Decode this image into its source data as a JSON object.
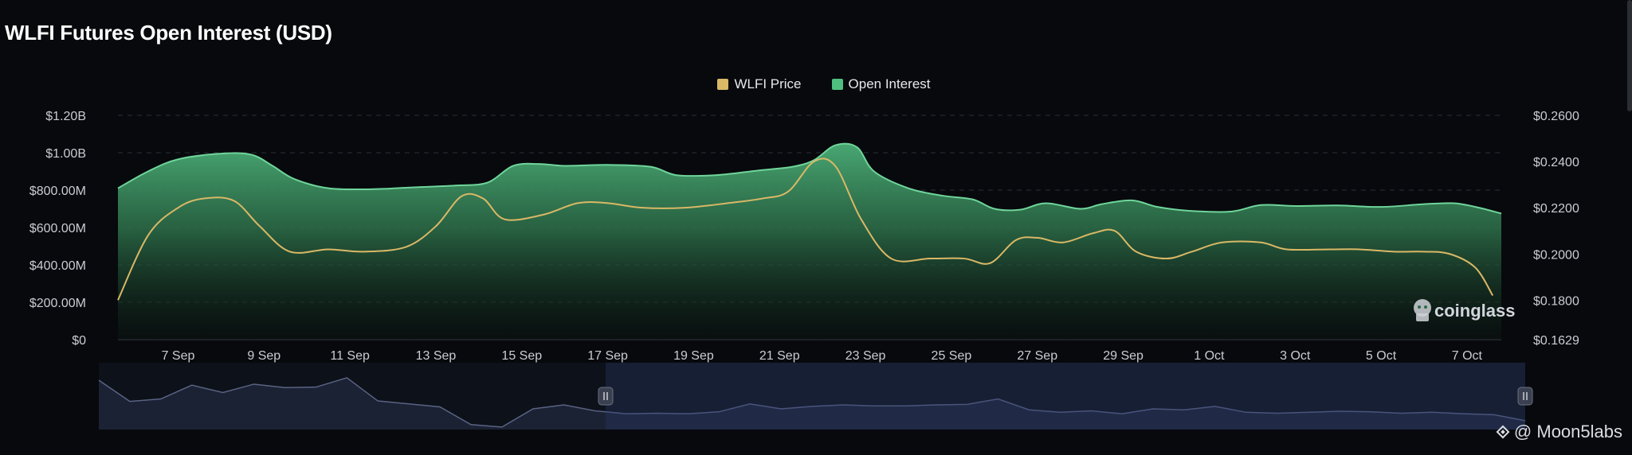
{
  "title": "WLFI Futures Open Interest (USD)",
  "legend": [
    {
      "label": "WLFI Price",
      "color": "#d9b866"
    },
    {
      "label": "Open Interest",
      "color": "#4fbf7f"
    }
  ],
  "watermark": "coinglass",
  "credit": "@ Moon5labs",
  "chart_data": {
    "type": "area",
    "title": "WLFI Futures Open Interest (USD)",
    "x_tick_labels": [
      "7 Sep",
      "9 Sep",
      "11 Sep",
      "13 Sep",
      "15 Sep",
      "17 Sep",
      "19 Sep",
      "21 Sep",
      "23 Sep",
      "25 Sep",
      "27 Sep",
      "29 Sep",
      "1 Oct",
      "3 Oct",
      "5 Oct",
      "7 Oct"
    ],
    "left_axis": {
      "tick_labels": [
        "$0",
        "$200.00M",
        "$400.00M",
        "$600.00M",
        "$800.00M",
        "$1.00B",
        "$1.20B"
      ],
      "range": [
        0,
        1200000000
      ]
    },
    "right_axis": {
      "tick_labels": [
        "$0.1629",
        "$0.1800",
        "$0.2000",
        "$0.2200",
        "$0.2400",
        "$0.2600"
      ],
      "range": [
        0.1629,
        0.26
      ]
    },
    "x_range": [
      5.6,
      37.8
    ],
    "grid": true,
    "legend_position": "top-center",
    "series": [
      {
        "name": "Open Interest",
        "type": "area",
        "axis": "left",
        "color": "#4fbf7f",
        "points": [
          [
            5.6,
            810
          ],
          [
            6.3,
            900
          ],
          [
            7.0,
            965
          ],
          [
            8.0,
            995
          ],
          [
            8.7,
            990
          ],
          [
            9.2,
            930
          ],
          [
            9.7,
            860
          ],
          [
            10.5,
            810
          ],
          [
            11.5,
            805
          ],
          [
            12.5,
            815
          ],
          [
            13.5,
            825
          ],
          [
            14.2,
            840
          ],
          [
            14.8,
            930
          ],
          [
            15.4,
            940
          ],
          [
            16.0,
            930
          ],
          [
            17.0,
            935
          ],
          [
            18.0,
            925
          ],
          [
            18.6,
            880
          ],
          [
            19.5,
            880
          ],
          [
            20.5,
            905
          ],
          [
            21.3,
            925
          ],
          [
            21.8,
            960
          ],
          [
            22.3,
            1040
          ],
          [
            22.8,
            1030
          ],
          [
            23.2,
            900
          ],
          [
            24.0,
            810
          ],
          [
            24.8,
            770
          ],
          [
            25.5,
            750
          ],
          [
            26.0,
            700
          ],
          [
            26.6,
            695
          ],
          [
            27.2,
            730
          ],
          [
            28.0,
            700
          ],
          [
            28.5,
            725
          ],
          [
            29.2,
            745
          ],
          [
            29.8,
            710
          ],
          [
            30.5,
            690
          ],
          [
            31.5,
            685
          ],
          [
            32.2,
            720
          ],
          [
            33.0,
            715
          ],
          [
            34.0,
            718
          ],
          [
            35.0,
            710
          ],
          [
            36.0,
            725
          ],
          [
            36.7,
            730
          ],
          [
            37.2,
            710
          ],
          [
            37.8,
            675
          ]
        ]
      },
      {
        "name": "WLFI Price",
        "type": "line",
        "axis": "right",
        "color": "#d9b866",
        "points": [
          [
            5.6,
            0.18
          ],
          [
            6.3,
            0.208
          ],
          [
            7.0,
            0.22
          ],
          [
            7.6,
            0.224
          ],
          [
            8.3,
            0.223
          ],
          [
            8.9,
            0.212
          ],
          [
            9.6,
            0.201
          ],
          [
            10.5,
            0.202
          ],
          [
            11.3,
            0.201
          ],
          [
            12.3,
            0.203
          ],
          [
            13.0,
            0.212
          ],
          [
            13.6,
            0.225
          ],
          [
            14.1,
            0.224
          ],
          [
            14.6,
            0.215
          ],
          [
            15.5,
            0.217
          ],
          [
            16.3,
            0.222
          ],
          [
            17.0,
            0.222
          ],
          [
            17.8,
            0.22
          ],
          [
            18.8,
            0.22
          ],
          [
            19.8,
            0.222
          ],
          [
            20.6,
            0.224
          ],
          [
            21.2,
            0.227
          ],
          [
            21.8,
            0.24
          ],
          [
            22.3,
            0.238
          ],
          [
            22.9,
            0.215
          ],
          [
            23.6,
            0.198
          ],
          [
            24.5,
            0.198
          ],
          [
            25.3,
            0.198
          ],
          [
            25.9,
            0.196
          ],
          [
            26.5,
            0.206
          ],
          [
            27.0,
            0.207
          ],
          [
            27.6,
            0.205
          ],
          [
            28.3,
            0.209
          ],
          [
            28.8,
            0.21
          ],
          [
            29.3,
            0.201
          ],
          [
            30.0,
            0.198
          ],
          [
            30.6,
            0.201
          ],
          [
            31.3,
            0.205
          ],
          [
            32.2,
            0.205
          ],
          [
            32.8,
            0.202
          ],
          [
            33.8,
            0.202
          ],
          [
            34.5,
            0.202
          ],
          [
            35.3,
            0.201
          ],
          [
            36.0,
            0.201
          ],
          [
            36.6,
            0.2
          ],
          [
            37.2,
            0.194
          ],
          [
            37.6,
            0.182
          ]
        ]
      }
    ],
    "navigator": {
      "selection_range": [
        15.0,
        37.8
      ],
      "values": [
        1.0,
        0.57,
        0.62,
        0.9,
        0.75,
        0.92,
        0.85,
        0.86,
        1.05,
        0.58,
        0.52,
        0.46,
        0.1,
        0.05,
        0.42,
        0.5,
        0.38,
        0.32,
        0.33,
        0.32,
        0.36,
        0.52,
        0.42,
        0.47,
        0.5,
        0.48,
        0.48,
        0.5,
        0.51,
        0.62,
        0.4,
        0.35,
        0.38,
        0.32,
        0.42,
        0.4,
        0.47,
        0.35,
        0.33,
        0.35,
        0.37,
        0.36,
        0.33,
        0.35,
        0.32,
        0.3,
        0.18
      ]
    }
  }
}
